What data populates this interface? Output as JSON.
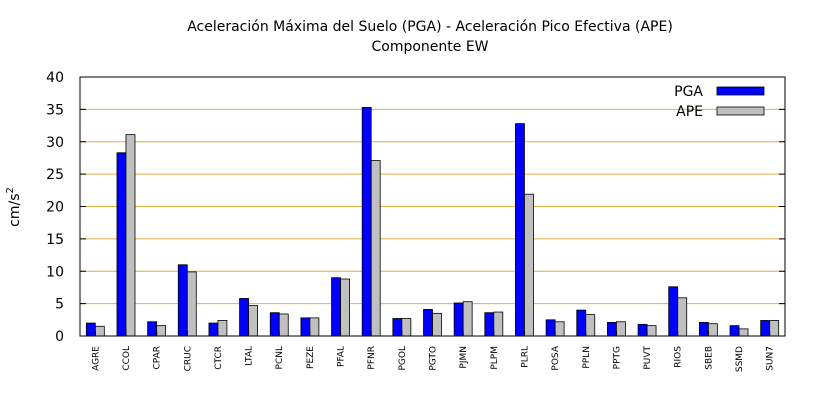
{
  "chart_data": {
    "type": "bar",
    "title": "Aceleración Máxima del Suelo (PGA) -  Aceleración Pico Efectiva (APE)",
    "subtitle": "Componente EW",
    "xlabel": "",
    "ylabel": "cm/s",
    "ylabel_superscript": "2",
    "ylim": [
      0,
      40
    ],
    "yticks": [
      0,
      5,
      10,
      15,
      20,
      25,
      30,
      35,
      40
    ],
    "grid": "horizontal",
    "legend_position": "top-right",
    "categories": [
      "AGRE",
      "CCOL",
      "CPAR",
      "CRUC",
      "CTCR",
      "LTAL",
      "PCNL",
      "PEZE",
      "PFAL",
      "PFNR",
      "PGOL",
      "PGTO",
      "PJMN",
      "PLPM",
      "PLRL",
      "POSA",
      "PPLN",
      "PPTG",
      "PUVT",
      "RIOS",
      "SBEB",
      "SSMD",
      "SUN7"
    ],
    "series": [
      {
        "name": "PGA",
        "color": "#0000ff",
        "values": [
          2.0,
          28.3,
          2.2,
          11.0,
          2.0,
          5.8,
          3.6,
          2.8,
          9.0,
          35.3,
          2.7,
          4.1,
          5.1,
          3.6,
          32.8,
          2.5,
          4.0,
          2.1,
          1.8,
          7.6,
          2.1,
          1.6,
          2.4
        ]
      },
      {
        "name": "APE",
        "color": "#c0c0c0",
        "values": [
          1.5,
          31.1,
          1.6,
          9.9,
          2.4,
          4.7,
          3.4,
          2.8,
          8.8,
          27.1,
          2.7,
          3.5,
          5.3,
          3.7,
          21.9,
          2.2,
          3.3,
          2.2,
          1.6,
          5.9,
          1.9,
          1.1,
          2.4
        ]
      }
    ]
  }
}
